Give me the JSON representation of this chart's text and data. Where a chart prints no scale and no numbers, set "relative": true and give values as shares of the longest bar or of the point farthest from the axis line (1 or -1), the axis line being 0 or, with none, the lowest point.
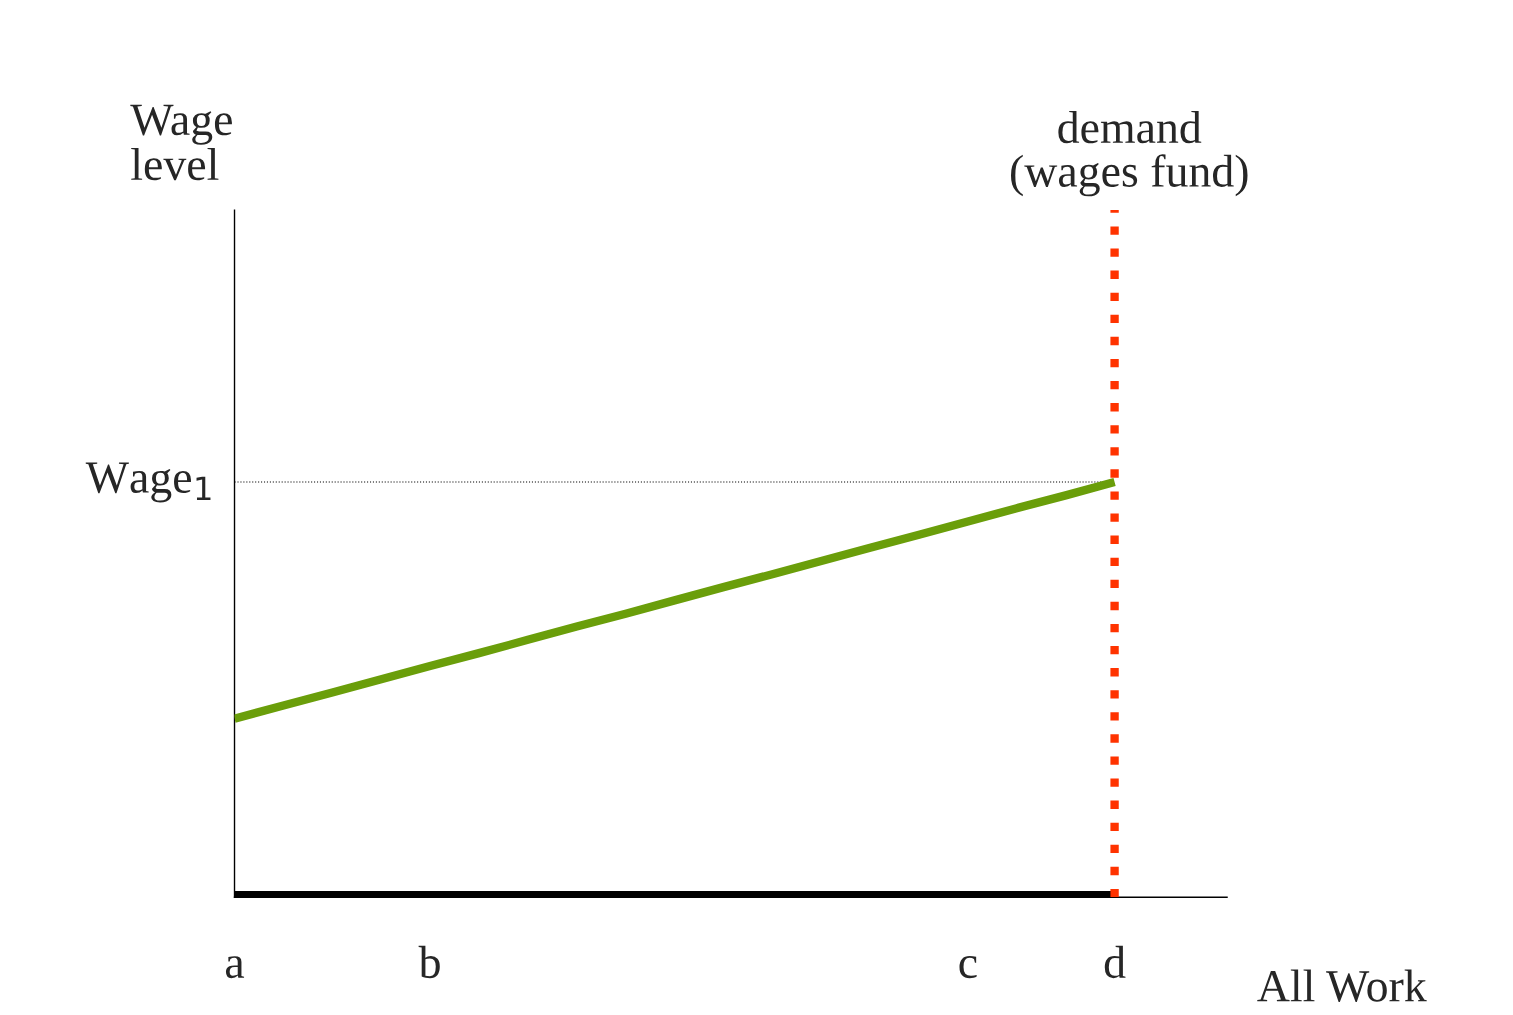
{
  "chart_data": {
    "type": "line",
    "relative": true,
    "xlabel": "All Work",
    "annotations": [
      "Wage\nlevel"
    ],
    "categories": [
      "a",
      null,
      null,
      null,
      "b",
      null,
      null,
      null,
      null,
      null,
      null,
      null,
      null,
      null,
      null,
      "c",
      null,
      null,
      "d",
      null,
      null
    ],
    "series": [
      {
        "color": "#6a9e0a",
        "values": [
          0.43,
          0.462,
          0.493,
          0.525,
          0.557,
          0.588,
          0.62,
          0.652,
          0.683,
          0.715,
          0.747,
          0.778,
          0.81,
          0.842,
          0.873,
          0.905,
          0.937,
          0.968,
          1,
          null,
          null
        ]
      },
      {
        "color": "#000000",
        "values": [
          0,
          0,
          0,
          0,
          0,
          0,
          0,
          0,
          0,
          0,
          0,
          0,
          0,
          0,
          0,
          0,
          0,
          0,
          0,
          null,
          null
        ]
      }
    ],
    "ref_lines": [
      {
        "axis": "y",
        "value": 1,
        "label": "Wage$_{1}$",
        "color": "#000000",
        "line_style": "dotted"
      },
      {
        "axis": "x",
        "value": "d",
        "label": "demand\n(wages fund)",
        "color": "#ff3300",
        "line_style": "dotted"
      }
    ],
    "grid": false,
    "legend": false,
    "marker": "none",
    "line_style": "solid"
  }
}
